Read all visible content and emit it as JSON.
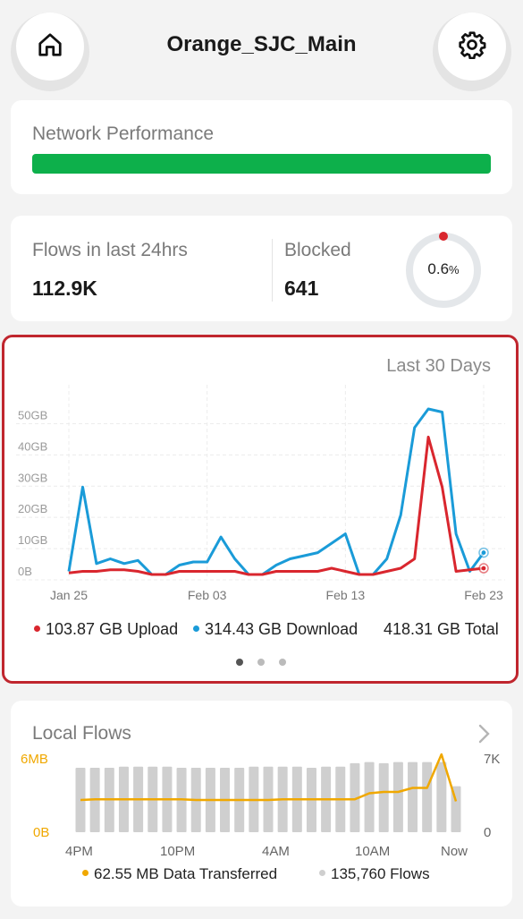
{
  "header": {
    "title": "Orange_SJC_Main",
    "home_icon": "home-icon",
    "settings_icon": "gear-icon"
  },
  "network_performance": {
    "label": "Network Performance",
    "status_color": "#0db04b"
  },
  "flows_summary": {
    "flows_label": "Flows in last 24hrs",
    "flows_value": "112.9K",
    "blocked_label": "Blocked",
    "blocked_value": "641",
    "blocked_percent": "0.6",
    "percent_sign": "%"
  },
  "traffic_chart": {
    "range_label": "Last 30 Days",
    "legend": {
      "upload": "103.87 GB Upload",
      "download": "314.43 GB Download",
      "total": "418.31 GB Total"
    },
    "pager": {
      "count": 3,
      "active": 0
    }
  },
  "chart_data": [
    {
      "type": "line",
      "y_ticks": [
        "0B",
        "10GB",
        "20GB",
        "30GB",
        "40GB",
        "50GB"
      ],
      "x_ticks": [
        "Jan 25",
        "Feb 03",
        "Feb 13",
        "Feb 23"
      ],
      "ylim": [
        0,
        55
      ],
      "grid": true,
      "series": [
        {
          "name": "Upload",
          "color": "#d9262e",
          "values": [
            0.5,
            1,
            1,
            1.5,
            1.5,
            1,
            0,
            0,
            1,
            1,
            1,
            1,
            1,
            0,
            0,
            1,
            1,
            1,
            1,
            2,
            1,
            0,
            0,
            1,
            2,
            5,
            44,
            28,
            1,
            1.5,
            2
          ]
        },
        {
          "name": "Download",
          "color": "#1a9bd8",
          "values": [
            1,
            28,
            3.5,
            5,
            3.5,
            4.5,
            0,
            0,
            3,
            4,
            4,
            12,
            5,
            0,
            0,
            3,
            5,
            6,
            7,
            10,
            13,
            0,
            0,
            5,
            19,
            47,
            53,
            52,
            13,
            1,
            7
          ]
        }
      ]
    },
    {
      "type": "bar",
      "title": "Local Flows",
      "left_axis": {
        "max_label": "6MB",
        "min_label": "0B",
        "color": "#f0a800"
      },
      "right_axis": {
        "max_label": "7K",
        "min_label": "0"
      },
      "x_ticks": [
        "4PM",
        "10PM",
        "4AM",
        "10AM",
        "Now"
      ],
      "series": [
        {
          "name": "Flows",
          "color": "#cfcfcf",
          "values": [
            5600,
            5600,
            5600,
            5700,
            5700,
            5700,
            5700,
            5600,
            5600,
            5600,
            5600,
            5600,
            5700,
            5700,
            5700,
            5700,
            5600,
            5700,
            5700,
            6000,
            6100,
            6000,
            6100,
            6100,
            6100,
            6100,
            4000
          ]
        },
        {
          "name": "Data Transferred",
          "color": "#f0a800",
          "values": [
            2.4,
            2.45,
            2.45,
            2.45,
            2.45,
            2.45,
            2.45,
            2.45,
            2.4,
            2.4,
            2.4,
            2.4,
            2.4,
            2.4,
            2.45,
            2.45,
            2.45,
            2.45,
            2.45,
            2.45,
            2.9,
            3.0,
            3.0,
            3.3,
            3.3,
            5.8,
            2.3
          ]
        }
      ],
      "legend": {
        "data": "62.55 MB Data Transferred",
        "flows": "135,760 Flows"
      }
    }
  ]
}
